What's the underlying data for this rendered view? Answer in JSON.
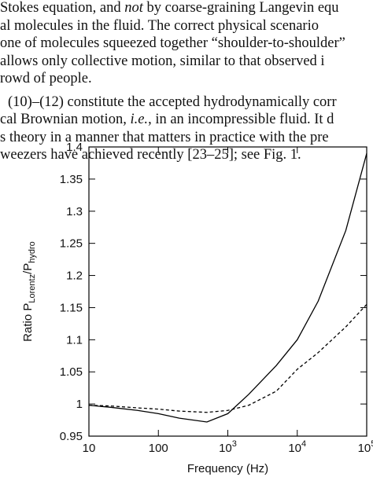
{
  "paragraphs": [
    [
      [
        {
          "t": "Stokes equation, and "
        },
        {
          "t": "not",
          "i": true
        },
        {
          "t": " by coarse-graining Langevin equ"
        }
      ],
      [
        {
          "t": "al molecules in the fluid. The correct physical scenario"
        }
      ],
      [
        {
          "t": "one of molecules squeezed together “shoulder-to-shoulder”"
        }
      ],
      [
        {
          "t": " allows only collective motion, similar to that observed i"
        }
      ],
      [
        {
          "t": "rowd of people."
        }
      ]
    ],
    [
      [
        {
          "t": "(10)–(12) constitute the accepted hydrodynamically corr"
        }
      ],
      [
        {
          "t": "cal Brownian motion, "
        },
        {
          "t": "i.e.",
          "i": true
        },
        {
          "t": ", in an incompressible fluid. It d"
        }
      ],
      [
        {
          "t": "s theory in a manner that matters in practice with the pre"
        }
      ],
      [
        {
          "t": "weezers have achieved recently [23–25]; see Fig. 1."
        }
      ]
    ]
  ],
  "chart_data": {
    "type": "line",
    "xlabel": "Frequency (Hz)",
    "ylabel": [
      {
        "t": "Ratio P"
      },
      {
        "t": "Lorentz",
        "sub": true
      },
      {
        "t": "/P"
      },
      {
        "t": "hydro",
        "sub": true
      }
    ],
    "x": [
      10,
      20,
      50,
      100,
      200,
      500,
      1000,
      2000,
      5000,
      10000,
      20000,
      50000,
      100000
    ],
    "xlog": true,
    "xlim": [
      10,
      100000
    ],
    "xticks": [
      10,
      100,
      {
        "value": 1000,
        "label": "10^3"
      },
      {
        "value": 10000,
        "label": "10^4"
      },
      {
        "value": 100000,
        "label": "10^5"
      }
    ],
    "ylim": [
      0.95,
      1.4
    ],
    "yticks": [
      0.95,
      1,
      1.05,
      1.1,
      1.15,
      1.2,
      1.25,
      1.3,
      1.35,
      1.4
    ],
    "series": [
      {
        "color": "#000000",
        "dash": false,
        "values": [
          0.998,
          0.995,
          0.99,
          0.985,
          0.978,
          0.972,
          0.985,
          1.015,
          1.06,
          1.1,
          1.16,
          1.27,
          1.39
        ]
      },
      {
        "color": "#000000",
        "dash": true,
        "values": [
          0.998,
          0.997,
          0.994,
          0.992,
          0.989,
          0.987,
          0.99,
          0.998,
          1.02,
          1.054,
          1.08,
          1.12,
          1.155
        ]
      }
    ]
  }
}
